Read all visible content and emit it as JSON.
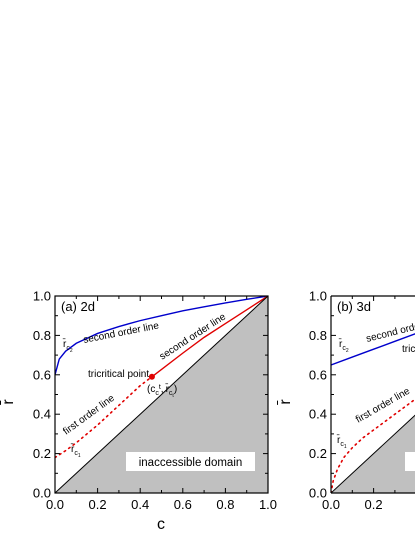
{
  "chart_data": [
    {
      "type": "line",
      "panel_label": "(a) 2d",
      "xlabel": "c",
      "ylabel": "r̄",
      "xlim": [
        0.0,
        1.0
      ],
      "ylim": [
        0.0,
        1.0
      ],
      "x_ticks": [
        "0.0",
        "0.2",
        "0.4",
        "0.6",
        "0.8",
        "1.0"
      ],
      "y_ticks": [
        "0.0",
        "0.2",
        "0.4",
        "0.6",
        "0.8",
        "1.0"
      ],
      "series": [
        {
          "color": "#0000cc",
          "style": "solid",
          "x": [
            0.0,
            0.02,
            0.05,
            0.1,
            0.2,
            0.3,
            0.4,
            0.5,
            0.6,
            0.7,
            0.8,
            0.9,
            1.0
          ],
          "y": [
            0.6,
            0.68,
            0.72,
            0.76,
            0.81,
            0.845,
            0.875,
            0.9,
            0.925,
            0.945,
            0.965,
            0.983,
            1.0
          ]
        },
        {
          "color": "#e00000",
          "style": "solid",
          "x": [
            0.455,
            0.6,
            0.7,
            0.8,
            0.9,
            1.0
          ],
          "y": [
            0.59,
            0.71,
            0.79,
            0.86,
            0.93,
            1.0
          ]
        },
        {
          "color": "#e00000",
          "style": "dotted",
          "x": [
            0.0,
            0.05,
            0.1,
            0.15,
            0.2,
            0.25,
            0.3,
            0.35,
            0.4,
            0.455
          ],
          "y": [
            0.18,
            0.215,
            0.255,
            0.3,
            0.345,
            0.395,
            0.445,
            0.495,
            0.545,
            0.59
          ]
        }
      ],
      "diagonal": {
        "x": [
          0.0,
          1.0
        ],
        "y": [
          0.0,
          1.0
        ],
        "color": "#000000"
      },
      "shaded_region": {
        "color": "#c0c0c0"
      },
      "tricritical_point": {
        "x": 0.455,
        "y": 0.59,
        "color": "#e00000"
      },
      "annotations": {
        "second_order_left": "second order line",
        "second_order_right": "second order line",
        "first_order": "first order line",
        "tricritical": "tricritical point",
        "tricritical_coord_open": "(c",
        "tricritical_coord_sep": ",",
        "tricritical_coord_rbar": "r̄",
        "tricritical_coord_close": ")",
        "tricritical_coord_sub": "c",
        "tricritical_coord_subsub": "t",
        "rc2_label": "r̄",
        "rc2_sub": "c",
        "rc2_subsub": "2",
        "rc1_label": "r̄",
        "rc1_sub": "c",
        "rc1_subsub": "1",
        "domain": "inaccessible domain"
      }
    },
    {
      "type": "line",
      "panel_label": "(b) 3d",
      "xlabel": "",
      "ylabel": "r̄",
      "xlim": [
        0.0,
        1.0
      ],
      "ylim": [
        0.0,
        1.0
      ],
      "x_ticks": [
        "0.0",
        "0.2"
      ],
      "y_ticks": [
        "0.0",
        "0.2",
        "0.4",
        "0.6",
        "0.8",
        "1.0"
      ],
      "series": [
        {
          "color": "#0000cc",
          "style": "solid",
          "x": [
            0.0,
            0.1,
            0.2,
            0.3,
            0.4
          ],
          "y": [
            0.65,
            0.69,
            0.73,
            0.77,
            0.81
          ]
        },
        {
          "color": "#e00000",
          "style": "dotted",
          "x": [
            0.0,
            0.01,
            0.03,
            0.06,
            0.1,
            0.15,
            0.2,
            0.25,
            0.3,
            0.35,
            0.4
          ],
          "y": [
            0.0,
            0.06,
            0.12,
            0.18,
            0.23,
            0.28,
            0.32,
            0.36,
            0.4,
            0.44,
            0.48
          ]
        }
      ],
      "diagonal": {
        "x": [
          0.0,
          1.0
        ],
        "y": [
          0.0,
          1.0
        ],
        "color": "#000000"
      },
      "shaded_region": {
        "color": "#c0c0c0"
      },
      "annotations": {
        "second_order": "second order line",
        "tricritical_partial": "tric",
        "first_order": "first order line",
        "rc2_label": "r̄",
        "rc2_sub": "c",
        "rc2_subsub": "2",
        "rc1_label": "r̄",
        "rc1_sub": "c",
        "rc1_subsub": "1"
      }
    }
  ]
}
